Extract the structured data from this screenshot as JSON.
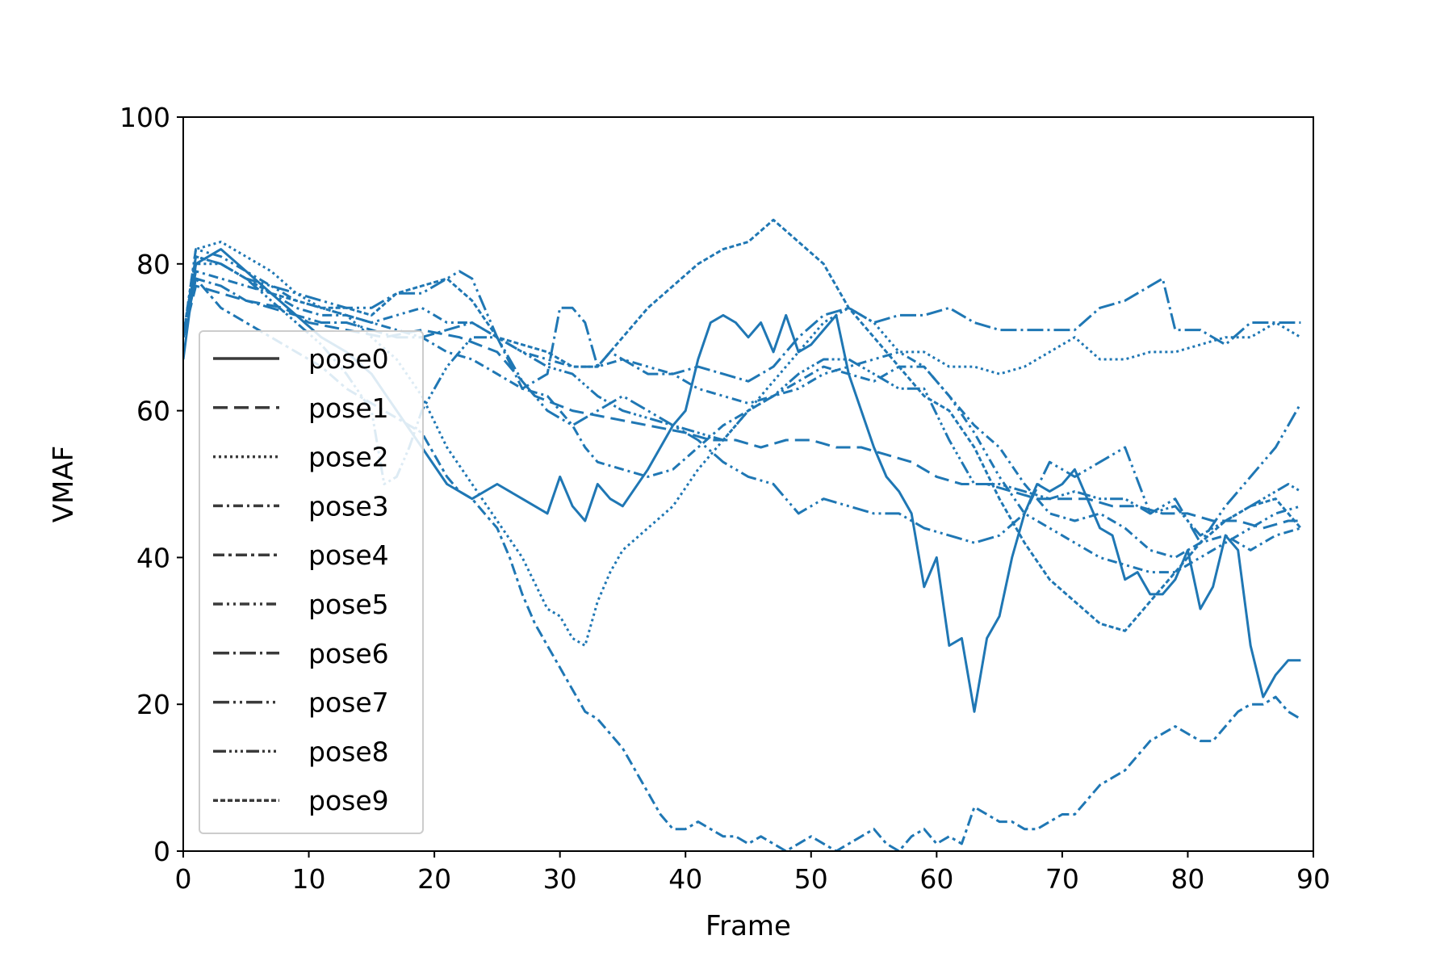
{
  "chart_data": {
    "type": "line",
    "title": "",
    "xlabel": "Frame",
    "ylabel": "VMAF",
    "xlim": [
      0,
      90
    ],
    "ylim": [
      0,
      100
    ],
    "xticks": [
      0,
      10,
      20,
      30,
      40,
      50,
      60,
      70,
      80,
      90
    ],
    "yticks": [
      0,
      20,
      40,
      60,
      80,
      100
    ],
    "grid": false,
    "legend_position": "lower-left",
    "line_color": "#1f77b4",
    "legend_color": "#3a3a3a",
    "series": [
      {
        "name": "pose0",
        "dash": "solid",
        "x": [
          0,
          1,
          3,
          5,
          7,
          9,
          11,
          13,
          15,
          17,
          19,
          21,
          23,
          25,
          27,
          29,
          30,
          31,
          32,
          33,
          34,
          35,
          37,
          39,
          40,
          41,
          42,
          43,
          44,
          45,
          46,
          47,
          48,
          49,
          50,
          51,
          52,
          53,
          54,
          55,
          56,
          57,
          58,
          59,
          60,
          61,
          62,
          63,
          64,
          65,
          66,
          67,
          68,
          69,
          70,
          71,
          72,
          73,
          74,
          75,
          76,
          77,
          78,
          79,
          80,
          81,
          82,
          83,
          84,
          85,
          86,
          87,
          88,
          89
        ],
        "y": [
          67,
          80,
          82,
          79,
          76,
          73,
          70,
          68,
          65,
          60,
          55,
          50,
          48,
          50,
          48,
          46,
          51,
          47,
          45,
          50,
          48,
          47,
          52,
          58,
          60,
          67,
          72,
          73,
          72,
          70,
          72,
          68,
          73,
          68,
          69,
          71,
          73,
          65,
          60,
          55,
          51,
          49,
          46,
          36,
          40,
          28,
          29,
          19,
          29,
          32,
          40,
          46,
          50,
          49,
          50,
          52,
          48,
          44,
          43,
          37,
          38,
          35,
          35,
          37,
          41,
          33,
          36,
          43,
          41,
          28,
          21,
          24,
          26,
          26
        ]
      },
      {
        "name": "pose1",
        "dash": "dash",
        "x": [
          0,
          1,
          3,
          5,
          8,
          10,
          13,
          16,
          19,
          22,
          25,
          28,
          31,
          34,
          37,
          40,
          42,
          44,
          46,
          48,
          50,
          52,
          54,
          56,
          58,
          60,
          62,
          64,
          66,
          68,
          70,
          72,
          74,
          76,
          78,
          80,
          82,
          84,
          86,
          88,
          89
        ],
        "y": [
          70,
          77,
          76,
          75,
          74,
          72,
          71,
          70,
          71,
          70,
          68,
          62,
          60,
          59,
          58,
          57,
          56,
          56,
          55,
          56,
          56,
          55,
          55,
          54,
          53,
          51,
          50,
          50,
          49,
          48,
          48,
          48,
          47,
          47,
          46,
          46,
          45,
          45,
          44,
          45,
          45
        ]
      },
      {
        "name": "pose2",
        "dash": "dot",
        "x": [
          0,
          1,
          3,
          5,
          7,
          9,
          11,
          13,
          15,
          17,
          19,
          21,
          23,
          25,
          27,
          29,
          30,
          31,
          32,
          33,
          34,
          35,
          37,
          39,
          41,
          43,
          45,
          47,
          49,
          51,
          53,
          55,
          57,
          59,
          61,
          63,
          65,
          67,
          69,
          71,
          73,
          75,
          77,
          79,
          81,
          83,
          85,
          87,
          89
        ],
        "y": [
          70,
          82,
          83,
          81,
          79,
          76,
          74,
          73,
          70,
          67,
          62,
          55,
          50,
          45,
          40,
          33,
          32,
          29,
          28,
          34,
          38,
          41,
          44,
          47,
          52,
          56,
          60,
          64,
          68,
          72,
          74,
          72,
          68,
          68,
          66,
          66,
          65,
          66,
          68,
          70,
          67,
          67,
          68,
          68,
          69,
          70,
          70,
          72,
          70
        ]
      },
      {
        "name": "pose3",
        "dash": "dashdot",
        "x": [
          0,
          1,
          3,
          5,
          7,
          9,
          11,
          13,
          15,
          17,
          19,
          21,
          23,
          25,
          27,
          29,
          30,
          31,
          32,
          33,
          35,
          37,
          39,
          41,
          43,
          45,
          47,
          49,
          51,
          53,
          55,
          57,
          59,
          61,
          63,
          65,
          67,
          69,
          71,
          73,
          75,
          77,
          79,
          81,
          83,
          85,
          87,
          89
        ],
        "y": [
          70,
          79,
          78,
          77,
          76,
          74,
          73,
          73,
          72,
          71,
          70,
          68,
          67,
          65,
          63,
          62,
          60,
          58,
          55,
          53,
          52,
          51,
          52,
          55,
          58,
          60,
          62,
          64,
          66,
          65,
          64,
          66,
          66,
          62,
          58,
          55,
          50,
          46,
          45,
          46,
          44,
          41,
          40,
          42,
          43,
          41,
          43,
          44
        ]
      },
      {
        "name": "pose4",
        "dash": "dashdot2",
        "x": [
          0,
          1,
          3,
          5,
          7,
          9,
          11,
          13,
          15,
          17,
          19,
          20,
          21,
          22,
          23,
          24,
          25,
          26,
          27,
          28,
          29,
          30,
          31,
          32,
          33,
          34,
          35,
          36,
          37,
          38,
          39,
          40,
          41,
          42,
          43,
          44,
          45,
          46,
          47,
          48,
          49,
          50,
          51,
          52,
          53,
          54,
          55,
          56,
          57,
          58,
          59,
          60,
          61,
          62,
          63,
          64,
          65,
          66,
          67,
          68,
          69,
          70,
          71,
          72,
          73,
          74,
          75,
          76,
          77,
          78,
          79,
          80,
          81,
          82,
          83,
          84,
          85,
          86,
          87,
          88,
          89
        ],
        "y": [
          70,
          78,
          74,
          72,
          70,
          68,
          66,
          63,
          61,
          59,
          57,
          54,
          51,
          49,
          48,
          46,
          44,
          40,
          35,
          31,
          28,
          25,
          22,
          19,
          18,
          16,
          14,
          11,
          8,
          5,
          3,
          3,
          4,
          3,
          2,
          2,
          1,
          2,
          1,
          0,
          1,
          2,
          1,
          0,
          1,
          2,
          3,
          1,
          0,
          2,
          3,
          1,
          2,
          1,
          6,
          5,
          4,
          4,
          3,
          3,
          4,
          5,
          5,
          7,
          9,
          10,
          11,
          13,
          15,
          16,
          17,
          16,
          15,
          15,
          17,
          19,
          20,
          20,
          21,
          19,
          18
        ]
      },
      {
        "name": "pose5",
        "dash": "dashdotdot",
        "x": [
          0,
          1,
          3,
          5,
          7,
          9,
          11,
          13,
          15,
          17,
          19,
          21,
          23,
          25,
          27,
          29,
          31,
          33,
          35,
          37,
          39,
          41,
          43,
          45,
          47,
          49,
          51,
          53,
          55,
          57,
          59,
          61,
          63,
          65,
          67,
          69,
          71,
          73,
          75,
          77,
          79,
          81,
          83,
          85,
          87,
          89
        ],
        "y": [
          70,
          82,
          81,
          79,
          77,
          75,
          74,
          73,
          72,
          73,
          74,
          72,
          72,
          70,
          68,
          67,
          66,
          66,
          67,
          66,
          65,
          63,
          62,
          61,
          62,
          63,
          65,
          66,
          67,
          68,
          66,
          62,
          57,
          51,
          46,
          44,
          42,
          40,
          39,
          38,
          38,
          40,
          42,
          44,
          46,
          47
        ]
      },
      {
        "name": "pose6",
        "dash": "longdashdot",
        "x": [
          0,
          1,
          3,
          5,
          7,
          9,
          11,
          13,
          15,
          17,
          19,
          21,
          23,
          25,
          27,
          29,
          30,
          31,
          32,
          33,
          34,
          35,
          37,
          39,
          41,
          43,
          45,
          47,
          49,
          51,
          53,
          55,
          57,
          59,
          61,
          63,
          65,
          67,
          69,
          71,
          73,
          75,
          77,
          78,
          79,
          81,
          83,
          85,
          87,
          89
        ],
        "y": [
          70,
          78,
          77,
          75,
          74,
          73,
          72,
          72,
          71,
          70,
          70,
          71,
          72,
          70,
          63,
          65,
          74,
          74,
          72,
          66,
          68,
          67,
          65,
          65,
          66,
          65,
          64,
          66,
          70,
          73,
          74,
          72,
          73,
          73,
          74,
          72,
          71,
          71,
          71,
          71,
          74,
          75,
          77,
          78,
          71,
          71,
          69,
          72,
          72,
          72
        ]
      },
      {
        "name": "pose7",
        "dash": "longdashdotdot",
        "x": [
          0,
          1,
          3,
          5,
          7,
          9,
          11,
          13,
          15,
          17,
          19,
          21,
          22,
          23,
          24,
          25,
          27,
          29,
          31,
          33,
          35,
          37,
          39,
          41,
          43,
          45,
          47,
          49,
          51,
          53,
          55,
          57,
          59,
          61,
          63,
          65,
          67,
          69,
          71,
          73,
          75,
          77,
          79,
          81,
          83,
          85,
          87,
          89
        ],
        "y": [
          70,
          81,
          80,
          78,
          77,
          76,
          75,
          74,
          74,
          76,
          76,
          78,
          79,
          78,
          74,
          70,
          64,
          60,
          58,
          60,
          62,
          60,
          58,
          56,
          53,
          51,
          50,
          46,
          48,
          47,
          46,
          46,
          44,
          43,
          42,
          43,
          46,
          53,
          51,
          53,
          55,
          46,
          48,
          42,
          47,
          51,
          55,
          61
        ]
      },
      {
        "name": "pose8",
        "dash": "dashdotdotlong",
        "x": [
          0,
          1,
          3,
          5,
          7,
          9,
          11,
          13,
          15,
          16,
          17,
          18,
          19,
          21,
          23,
          25,
          27,
          29,
          31,
          33,
          35,
          37,
          39,
          41,
          43,
          45,
          47,
          49,
          51,
          53,
          55,
          57,
          59,
          61,
          63,
          65,
          67,
          69,
          71,
          73,
          75,
          77,
          79,
          81,
          83,
          85,
          87,
          88,
          89
        ],
        "y": [
          70,
          80,
          80,
          78,
          75,
          72,
          69,
          65,
          60,
          50,
          51,
          55,
          60,
          66,
          70,
          70,
          68,
          66,
          65,
          62,
          60,
          59,
          58,
          57,
          56,
          60,
          62,
          65,
          67,
          67,
          65,
          63,
          63,
          56,
          50,
          50,
          49,
          48,
          49,
          48,
          48,
          46,
          47,
          43,
          45,
          47,
          49,
          50,
          49
        ]
      },
      {
        "name": "pose9",
        "dash": "densedot",
        "x": [
          0,
          1,
          3,
          5,
          7,
          9,
          11,
          13,
          15,
          17,
          19,
          21,
          23,
          25,
          27,
          29,
          31,
          33,
          35,
          37,
          39,
          41,
          43,
          45,
          47,
          49,
          51,
          53,
          55,
          57,
          59,
          61,
          63,
          65,
          67,
          69,
          71,
          73,
          75,
          77,
          79,
          81,
          83,
          85,
          87,
          89
        ],
        "y": [
          70,
          81,
          80,
          78,
          76,
          75,
          74,
          74,
          73,
          76,
          77,
          78,
          75,
          70,
          69,
          68,
          66,
          66,
          70,
          74,
          77,
          80,
          82,
          83,
          86,
          83,
          80,
          74,
          70,
          66,
          62,
          60,
          55,
          48,
          42,
          37,
          34,
          31,
          30,
          34,
          38,
          42,
          45,
          47,
          48,
          44
        ]
      }
    ]
  }
}
